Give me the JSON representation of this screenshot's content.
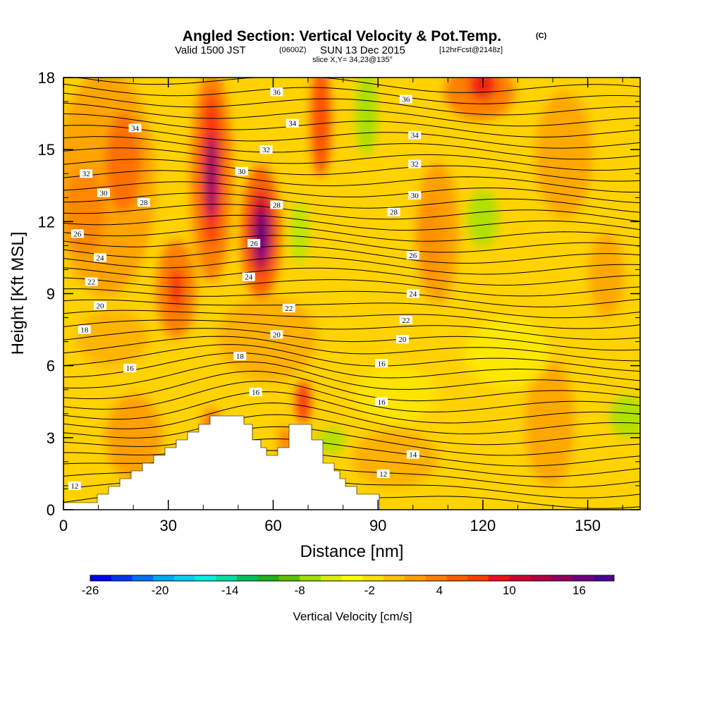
{
  "chart_data": {
    "type": "heatmap",
    "title": "Angled Section: Vertical Velocity & Pot.Temp.",
    "title_units": "(C)",
    "subtitle_parts": [
      "Valid 1500 JST",
      "(0600Z)",
      "SUN 13 Dec 2015",
      "[12hrFcst@2148z]"
    ],
    "slice_note": "slice X,Y= 34,23@135°",
    "xlabel": "Distance [nm]",
    "ylabel": "Height [Kft MSL]",
    "xlim": [
      0,
      165
    ],
    "ylim": [
      0,
      18
    ],
    "xticks": [
      0,
      30,
      60,
      90,
      120,
      150
    ],
    "yticks": [
      0,
      3,
      6,
      9,
      12,
      15,
      18
    ],
    "colorbar": {
      "title": "Vertical Velocity [cm/s]",
      "min": -26,
      "max": 19,
      "step": 1,
      "tick_labels": [
        -26,
        -20,
        -14,
        -8,
        -2,
        4,
        10,
        16
      ],
      "colors": [
        "#0000f0",
        "#0036f0",
        "#0070f0",
        "#00a8f0",
        "#00d0f0",
        "#00f0e0",
        "#00e0a0",
        "#00c060",
        "#20b020",
        "#60c000",
        "#a0e000",
        "#d8f000",
        "#ffff00",
        "#ffe000",
        "#ffc000",
        "#ffa000",
        "#ff8000",
        "#ff6000",
        "#ff4000",
        "#f01020",
        "#d00030",
        "#b00040",
        "#900060",
        "#700080",
        "#500090"
      ]
    },
    "theta_labels": [
      {
        "x": 3.2,
        "y": 1.0,
        "v": "12"
      },
      {
        "x": 6.0,
        "y": 7.5,
        "v": "18"
      },
      {
        "x": 4.0,
        "y": 11.5,
        "v": "26"
      },
      {
        "x": 6.5,
        "y": 14.0,
        "v": "32"
      },
      {
        "x": 8.0,
        "y": 9.5,
        "v": "22"
      },
      {
        "x": 10.5,
        "y": 8.5,
        "v": "20"
      },
      {
        "x": 10.5,
        "y": 10.5,
        "v": "24"
      },
      {
        "x": 11.5,
        "y": 13.2,
        "v": "30"
      },
      {
        "x": 19.0,
        "y": 5.9,
        "v": "16"
      },
      {
        "x": 20.5,
        "y": 15.9,
        "v": "34"
      },
      {
        "x": 23.0,
        "y": 12.8,
        "v": "28"
      },
      {
        "x": 50.5,
        "y": 6.4,
        "v": "18"
      },
      {
        "x": 51.0,
        "y": 14.1,
        "v": "30"
      },
      {
        "x": 53.0,
        "y": 9.7,
        "v": "24"
      },
      {
        "x": 54.5,
        "y": 11.1,
        "v": "26"
      },
      {
        "x": 55.0,
        "y": 4.9,
        "v": "16"
      },
      {
        "x": 58.0,
        "y": 15.0,
        "v": "32"
      },
      {
        "x": 61.0,
        "y": 7.3,
        "v": "20"
      },
      {
        "x": 61.0,
        "y": 12.7,
        "v": "28"
      },
      {
        "x": 61.0,
        "y": 17.4,
        "v": "36"
      },
      {
        "x": 64.5,
        "y": 8.4,
        "v": "22"
      },
      {
        "x": 65.5,
        "y": 16.1,
        "v": "34"
      },
      {
        "x": 91.5,
        "y": 1.5,
        "v": "12"
      },
      {
        "x": 91.0,
        "y": 4.5,
        "v": "16"
      },
      {
        "x": 91.0,
        "y": 6.1,
        "v": "16"
      },
      {
        "x": 94.5,
        "y": 12.4,
        "v": "28"
      },
      {
        "x": 97.0,
        "y": 7.1,
        "v": "20"
      },
      {
        "x": 98.0,
        "y": 7.9,
        "v": "22"
      },
      {
        "x": 100.0,
        "y": 9.0,
        "v": "24"
      },
      {
        "x": 100.0,
        "y": 10.6,
        "v": "26"
      },
      {
        "x": 100.0,
        "y": 2.3,
        "v": "14"
      },
      {
        "x": 100.5,
        "y": 13.1,
        "v": "30"
      },
      {
        "x": 100.5,
        "y": 14.4,
        "v": "32"
      },
      {
        "x": 100.5,
        "y": 15.6,
        "v": "34"
      },
      {
        "x": 98.0,
        "y": 17.1,
        "v": "36"
      }
    ]
  }
}
